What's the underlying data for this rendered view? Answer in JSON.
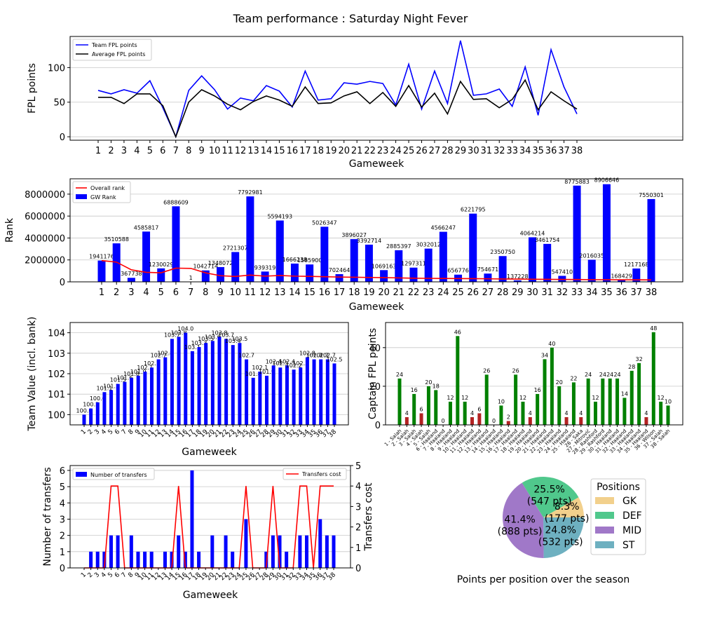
{
  "figure_title": "Team performance : Saturday Night Fever",
  "chart_data": [
    {
      "id": "points",
      "type": "line",
      "xlabel": "Gameweek",
      "ylabel": "FPL points",
      "x": [
        1,
        2,
        3,
        4,
        5,
        6,
        7,
        8,
        9,
        10,
        11,
        12,
        13,
        14,
        15,
        16,
        17,
        18,
        19,
        20,
        21,
        22,
        23,
        24,
        25,
        26,
        27,
        28,
        29,
        30,
        31,
        32,
        33,
        34,
        35,
        36,
        37,
        38
      ],
      "ylim": [
        -5,
        145
      ],
      "yticks": [
        0,
        50,
        100
      ],
      "grid": "horizontal",
      "legend": "top-left",
      "series": [
        {
          "name": "Team FPL points",
          "color": "#0000ff",
          "values": [
            67,
            62,
            68,
            63,
            81,
            42,
            0,
            67,
            88,
            68,
            40,
            56,
            52,
            74,
            66,
            43,
            95,
            53,
            55,
            78,
            76,
            80,
            77,
            46,
            105,
            40,
            95,
            48,
            139,
            60,
            62,
            69,
            44,
            101,
            31,
            126,
            72,
            33
          ]
        },
        {
          "name": "Average FPL points",
          "color": "#000000",
          "values": [
            57,
            57,
            48,
            62,
            62,
            45,
            0,
            50,
            68,
            59,
            47,
            39,
            51,
            59,
            53,
            44,
            72,
            48,
            49,
            59,
            65,
            48,
            64,
            44,
            74,
            43,
            63,
            33,
            80,
            54,
            55,
            42,
            54,
            82,
            39,
            65,
            52,
            40
          ]
        }
      ]
    },
    {
      "id": "rank",
      "type": "bar",
      "xlabel": "Gameweek",
      "ylabel": "Rank",
      "x": [
        1,
        2,
        3,
        4,
        5,
        6,
        7,
        8,
        9,
        10,
        11,
        12,
        13,
        14,
        15,
        16,
        17,
        18,
        19,
        20,
        21,
        22,
        23,
        24,
        25,
        26,
        27,
        28,
        29,
        30,
        31,
        32,
        33,
        34,
        35,
        36,
        37,
        38
      ],
      "ylim": [
        0,
        9400000
      ],
      "yticks": [
        0,
        2000000,
        4000000,
        6000000,
        8000000
      ],
      "grid": "horizontal",
      "legend": "top-left",
      "series": [
        {
          "name": "Overall rank",
          "color": "#ff0000",
          "values": [
            1941176,
            1800000,
            1100000,
            870000,
            830000,
            1250000,
            1230000,
            820000,
            560000,
            490000,
            620000,
            520000,
            580000,
            520000,
            500000,
            470000,
            440000,
            420000,
            400000,
            390000,
            360000,
            330000,
            320000,
            310000,
            300000,
            290000,
            280000,
            260000,
            250000,
            240000,
            230000,
            220000,
            210000,
            200000,
            200000,
            190000,
            190000,
            180000
          ]
        },
        {
          "name": "GW Rank",
          "color": "#0000ff",
          "values": [
            1941176,
            3510588,
            367738,
            4585817,
            1230029,
            6888609,
            1,
            1042714,
            1348072,
            2721307,
            7792981,
            939319,
            5594193,
            1666238,
            1585900,
            5026347,
            702464,
            3896027,
            3392714,
            1069163,
            2885397,
            1297311,
            3032012,
            4566247,
            656776,
            6221795,
            754671,
            2350750,
            137228,
            4064214,
            3461754,
            547410,
            8775883,
            2016035,
            8906646,
            168429,
            1217168,
            7550301
          ]
        }
      ]
    },
    {
      "id": "value",
      "type": "bar",
      "xlabel": "Gameweek",
      "ylabel": "Team Value (incl. bank)",
      "x": [
        1,
        2,
        3,
        4,
        5,
        6,
        7,
        8,
        9,
        10,
        11,
        12,
        13,
        14,
        15,
        16,
        17,
        18,
        19,
        20,
        21,
        22,
        23,
        24,
        25,
        26,
        27,
        28,
        29,
        30,
        31,
        32,
        33,
        34,
        35,
        36,
        37,
        38
      ],
      "ylim": [
        99.5,
        104.5
      ],
      "yticks": [
        100,
        101,
        102,
        103,
        104
      ],
      "grid": "horizontal",
      "color": "#0000ff",
      "values": [
        100.0,
        100.3,
        100.6,
        101.1,
        101.2,
        101.5,
        101.6,
        101.8,
        101.9,
        102.1,
        102.3,
        102.7,
        102.8,
        103.7,
        103.8,
        104.0,
        103.1,
        103.3,
        103.5,
        103.6,
        103.8,
        103.7,
        103.4,
        103.5,
        102.7,
        101.8,
        102.1,
        101.9,
        102.4,
        102.3,
        102.4,
        102.2,
        102.3,
        102.8,
        102.7,
        102.7,
        102.7,
        102.5
      ],
      "labels": [
        "100.0",
        "100.3",
        "100.6",
        "101.1",
        "101.2",
        "101.5",
        "101.6",
        "101.8",
        "101.9",
        "102.1",
        "102.3",
        "102.7",
        "102.8",
        "103.7",
        "103.8",
        "104.0",
        "103.1",
        "103.3",
        "103.5",
        "103.6",
        "103.8",
        "103.7",
        "103.4",
        "103.5",
        "102.7",
        "101.8",
        "102.1",
        "101.9",
        "102.4",
        "102.3",
        "102.4",
        "102.2",
        "102.3",
        "102.8",
        "102.7",
        "102.7",
        "102.7",
        "102.5"
      ]
    },
    {
      "id": "captain",
      "type": "bar",
      "xlabel": "",
      "ylabel": "Captain FPL points",
      "categories": [
        "1 - Salah",
        "2 - Salah",
        "3 - Salah",
        "4 - Salah",
        "5 - Salah",
        "6 - Haaland",
        "7 - Haaland",
        "8 - Haaland",
        "9 - Haaland",
        "10 - Haaland",
        "11 - Haaland",
        "12 - Haaland",
        "13 - Haaland",
        "14 - Haaland",
        "15 - Haaland",
        "16 - Haaland",
        "17 - Haaland",
        "18 - Haaland",
        "19 - Haaland",
        "20 - Haaland",
        "21 - Haaland",
        "22 - Haaland",
        "23 - Haaland",
        "24 - Haaland",
        "25 - Haaland",
        "26 - Saka",
        "27 - Mitrović",
        "28 - Rashford",
        "29 - Rashford",
        "30 - Haaland",
        "31 - Haaland",
        "32 - Haaland",
        "33 - Haaland",
        "34 - Haaland",
        "35 - Haaland",
        "36 - Wilson",
        "37 - Salah",
        "38 - Salah"
      ],
      "values": [
        24,
        4,
        16,
        6,
        20,
        18,
        0,
        12,
        46,
        12,
        4,
        6,
        26,
        0,
        10,
        2,
        26,
        12,
        4,
        16,
        34,
        40,
        20,
        4,
        22,
        4,
        24,
        12,
        24,
        24,
        24,
        14,
        28,
        32,
        4,
        48,
        12,
        10
      ],
      "colors": [
        "g",
        "r",
        "g",
        "r",
        "g",
        "g",
        "g",
        "g",
        "g",
        "g",
        "r",
        "r",
        "g",
        "g",
        "g",
        "r",
        "g",
        "g",
        "r",
        "g",
        "g",
        "g",
        "g",
        "r",
        "g",
        "r",
        "g",
        "g",
        "g",
        "g",
        "g",
        "g",
        "g",
        "g",
        "r",
        "g",
        "g",
        "g"
      ],
      "ylim": [
        0,
        53
      ],
      "yticks": [
        0,
        20,
        40
      ],
      "grid": "horizontal"
    },
    {
      "id": "transfers",
      "type": "bar",
      "xlabel": "Gameweek",
      "ylabel": "Number of transfers",
      "y2label": "Transfers cost",
      "x": [
        1,
        2,
        3,
        4,
        5,
        6,
        7,
        8,
        9,
        10,
        11,
        12,
        13,
        14,
        15,
        16,
        17,
        18,
        19,
        20,
        21,
        22,
        23,
        24,
        25,
        26,
        27,
        28,
        29,
        30,
        31,
        32,
        33,
        34,
        35,
        36,
        37,
        38
      ],
      "ylim": [
        0,
        6.3
      ],
      "yticks": [
        0,
        1,
        2,
        3,
        4,
        5,
        6
      ],
      "y2lim": [
        0,
        5
      ],
      "y2ticks": [
        0,
        1,
        2,
        3,
        4,
        5
      ],
      "grid": "horizontal",
      "series": [
        {
          "name": "Number of transfers",
          "color": "#0000ff",
          "legend": "top-left",
          "values": [
            0,
            1,
            1,
            1,
            2,
            2,
            0,
            2,
            1,
            1,
            1,
            0,
            1,
            1,
            2,
            1,
            6,
            1,
            0,
            2,
            0,
            2,
            1,
            0,
            3,
            0,
            0,
            1,
            2,
            2,
            1,
            0,
            2,
            2,
            0,
            3,
            2,
            2
          ]
        },
        {
          "name": "Transfers cost",
          "color": "#ff0000",
          "legend": "top-right",
          "values": [
            0,
            0,
            0,
            0,
            4,
            4,
            0,
            0,
            0,
            0,
            0,
            0,
            0,
            0,
            4,
            0,
            0,
            0,
            0,
            0,
            0,
            0,
            0,
            0,
            4,
            0,
            0,
            0,
            4,
            0,
            0,
            0,
            4,
            4,
            0,
            4,
            4,
            4
          ]
        }
      ]
    },
    {
      "id": "positions",
      "type": "pie",
      "title": "Points per position over the season",
      "legend_title": "Positions",
      "legend": "right",
      "slices": [
        {
          "name": "GK",
          "value": 177,
          "percent": "8.3%",
          "pts": "(177 pts)",
          "color": "#f2d08c"
        },
        {
          "name": "DEF",
          "value": 547,
          "percent": "25.5%",
          "pts": "(547 pts)",
          "color": "#50c88c"
        },
        {
          "name": "MID",
          "value": 888,
          "percent": "41.4%",
          "pts": "(888 pts)",
          "color": "#a078c8"
        },
        {
          "name": "ST",
          "value": 532,
          "percent": "24.8%",
          "pts": "(532 pts)",
          "color": "#6eb0c0"
        }
      ]
    }
  ]
}
